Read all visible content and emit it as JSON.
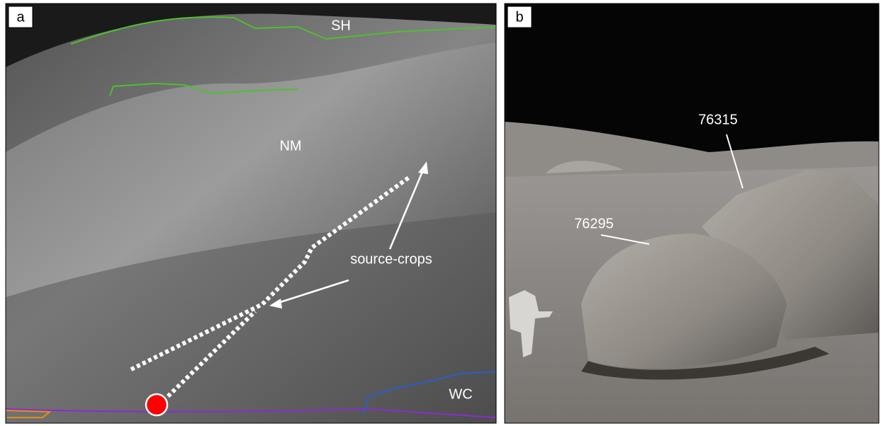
{
  "panels": [
    {
      "label": "a",
      "annotations": [
        "SH",
        "NM",
        "source-crops",
        "WC"
      ]
    },
    {
      "label": "b",
      "annotations": [
        "76315",
        "76295"
      ]
    }
  ]
}
